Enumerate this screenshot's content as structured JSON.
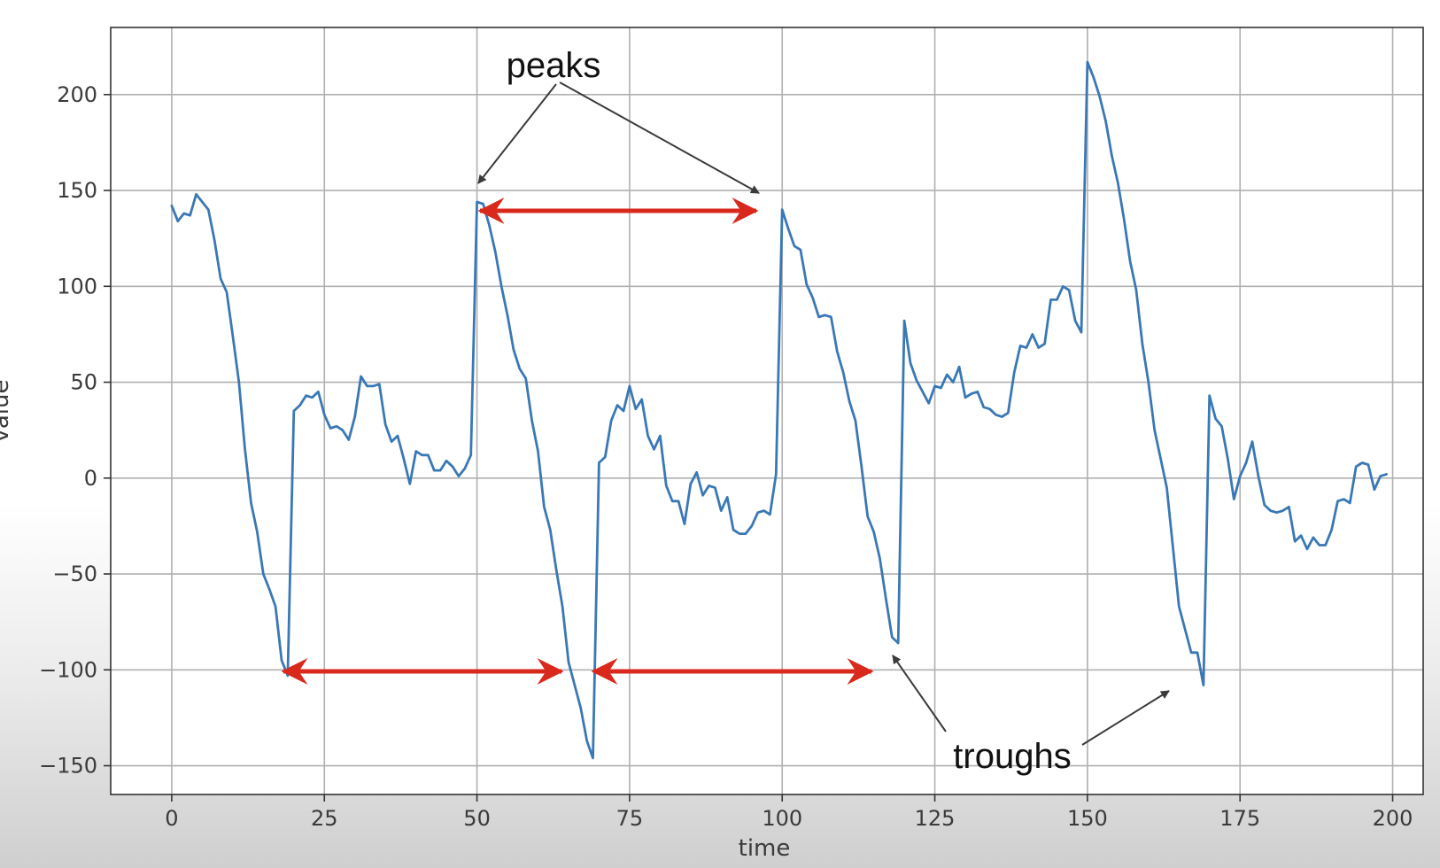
{
  "chart_data": {
    "type": "line",
    "xlabel": "time",
    "ylabel": "value",
    "xlim": [
      -10,
      205
    ],
    "ylim": [
      -165,
      235
    ],
    "xticks": [
      0,
      25,
      50,
      75,
      100,
      125,
      150,
      175,
      200
    ],
    "yticks": [
      -150,
      -100,
      -50,
      0,
      50,
      100,
      150,
      200
    ],
    "xtick_labels": [
      "0",
      "25",
      "50",
      "75",
      "100",
      "125",
      "150",
      "175",
      "200"
    ],
    "ytick_labels": [
      "−150",
      "−100",
      "−50",
      "0",
      "50",
      "100",
      "150",
      "200"
    ],
    "grid": true,
    "line_color": "#3a78b5",
    "series": [
      {
        "x": [
          0,
          1,
          2,
          3,
          4,
          5,
          6,
          7,
          8,
          9,
          10,
          11,
          12,
          13,
          14,
          15,
          16,
          17,
          18,
          19,
          20,
          21,
          22,
          23,
          24,
          25,
          26,
          27,
          28,
          29,
          30,
          31,
          32,
          33,
          34,
          35,
          36,
          37,
          38,
          39,
          40,
          41,
          42,
          43,
          44,
          45,
          46,
          47,
          48,
          49,
          50,
          51,
          52,
          53,
          54,
          55,
          56,
          57,
          58,
          59,
          60,
          61,
          62,
          63,
          64,
          65,
          66,
          67,
          68,
          69,
          70,
          71,
          72,
          73,
          74,
          75,
          76,
          77,
          78,
          79,
          80,
          81,
          82,
          83,
          84,
          85,
          86,
          87,
          88,
          89,
          90,
          91,
          92,
          93,
          94,
          95,
          96,
          97,
          98,
          99,
          100,
          101,
          102,
          103,
          104,
          105,
          106,
          107,
          108,
          109,
          110,
          111,
          112,
          113,
          114,
          115,
          116,
          117,
          118,
          119,
          120,
          121,
          122,
          123,
          124,
          125,
          126,
          127,
          128,
          129,
          130,
          131,
          132,
          133,
          134,
          135,
          136,
          137,
          138,
          139,
          140,
          141,
          142,
          143,
          144,
          145,
          146,
          147,
          148,
          149,
          150,
          151,
          152,
          153,
          154,
          155,
          156,
          157,
          158,
          159,
          160,
          161,
          162,
          163,
          164,
          165,
          166,
          167,
          168,
          169,
          170,
          171,
          172,
          173,
          174,
          175,
          176,
          177,
          178,
          179,
          180,
          181,
          182,
          183,
          184,
          185,
          186,
          187,
          188,
          189,
          190,
          191,
          192,
          193,
          194,
          195,
          196,
          197,
          198,
          199
        ],
        "y": [
          142,
          134,
          138,
          137,
          148,
          144,
          140,
          124,
          104,
          97,
          74,
          50,
          15,
          -13,
          -28,
          -50,
          -58,
          -67,
          -95,
          -103,
          35,
          38,
          43,
          42,
          45,
          33,
          26,
          27,
          25,
          20,
          32,
          53,
          48,
          48,
          49,
          28,
          19,
          22,
          10,
          -3,
          14,
          12,
          12,
          4,
          4,
          9,
          6,
          1,
          5,
          12,
          144,
          143,
          132,
          118,
          100,
          85,
          67,
          57,
          52,
          30,
          14,
          -15,
          -27,
          -48,
          -67,
          -96,
          -108,
          -120,
          -137,
          -146,
          8,
          11,
          30,
          38,
          35,
          48,
          36,
          41,
          22,
          15,
          22,
          -4,
          -12,
          -12,
          -24,
          -3,
          3,
          -9,
          -4,
          -5,
          -17,
          -10,
          -27,
          -29,
          -29,
          -25,
          -18,
          -17,
          -19,
          2,
          140,
          130,
          121,
          119,
          101,
          94,
          84,
          85,
          84,
          66,
          55,
          40,
          30,
          6,
          -20,
          -28,
          -42,
          -63,
          -83,
          -86,
          82,
          60,
          51,
          45,
          39,
          48,
          47,
          54,
          50,
          58,
          42,
          44,
          45,
          37,
          36,
          33,
          32,
          34,
          55,
          69,
          68,
          75,
          68,
          70,
          93,
          93,
          100,
          98,
          82,
          76,
          217,
          209,
          199,
          186,
          168,
          154,
          135,
          113,
          98,
          70,
          50,
          25,
          10,
          -5,
          -36,
          -67,
          -79,
          -91,
          -91,
          -108,
          43,
          31,
          27,
          10,
          -11,
          1,
          8,
          19,
          1,
          -14,
          -17,
          -18,
          -17,
          -15,
          -33,
          -30,
          -37,
          -31,
          -35,
          -35,
          -27,
          -12,
          -11,
          -13,
          6,
          8,
          7,
          -6,
          1,
          2
        ]
      }
    ],
    "annotations": [
      {
        "text": "peaks"
      },
      {
        "text": "troughs"
      }
    ]
  }
}
